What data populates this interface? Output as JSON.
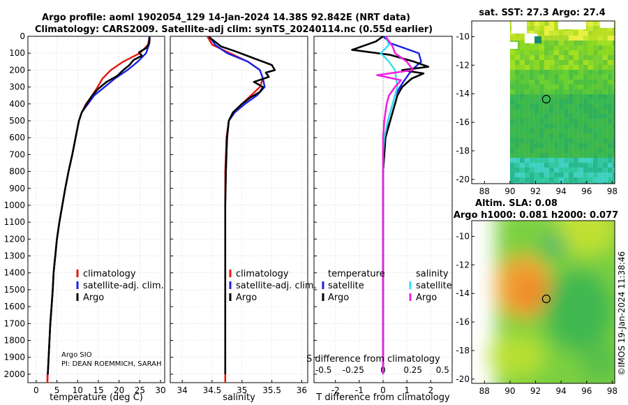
{
  "titles": {
    "line1": "Argo profile: aoml 1902054_129 14-Jan-2024 14.38S 92.842E (NRT data)",
    "line2": "Climatology: CARS2009. Satellite-adj clim: synTS_20240114.nc (0.55d earlier)"
  },
  "colors": {
    "climatology": "#e8180c",
    "satellite": "#1820e8",
    "argo": "#000000",
    "sat_salinity": "#30e0f0",
    "argo_salinity": "#f020e0"
  },
  "credit": {
    "line1": "Argo SIO",
    "line2": "PI: DEAN ROEMMICH, SARAH"
  },
  "side": {
    "sst_title": "sat. SST: 27.3 Argo: 27.4",
    "sla_title1": "Altim. SLA: 0.08",
    "sla_title2": "Argo h1000: 0.081 h2000: 0.077",
    "watermark": "©IMOS 19-Jan-2024 11:38:46"
  },
  "chart_data": [
    {
      "type": "line",
      "panel": "temperature",
      "xlabel": "temperature (deg C)",
      "ylabel": "",
      "xlim": [
        -2,
        31
      ],
      "ylim": [
        2050,
        0
      ],
      "xticks": [
        0,
        5,
        10,
        15,
        20,
        25,
        30
      ],
      "yticks": [
        0,
        100,
        200,
        300,
        400,
        500,
        600,
        700,
        800,
        900,
        1000,
        1100,
        1200,
        1300,
        1400,
        1500,
        1600,
        1700,
        1800,
        1900,
        2000
      ],
      "legend": [
        "climatology",
        "satellite-adj. clim.",
        "Argo"
      ],
      "series": [
        {
          "name": "climatology",
          "color": "#e8180c",
          "points": [
            [
              27.3,
              0
            ],
            [
              27.0,
              50
            ],
            [
              25.0,
              100
            ],
            [
              21.0,
              150
            ],
            [
              18.0,
              200
            ],
            [
              16.0,
              250
            ],
            [
              14.8,
              300
            ],
            [
              13.5,
              350
            ],
            [
              12.0,
              400
            ],
            [
              11.0,
              450
            ],
            [
              10.3,
              500
            ],
            [
              9.5,
              600
            ],
            [
              8.7,
              700
            ],
            [
              7.8,
              800
            ],
            [
              7.0,
              900
            ],
            [
              6.3,
              1000
            ],
            [
              5.6,
              1100
            ],
            [
              5.0,
              1200
            ],
            [
              4.6,
              1300
            ],
            [
              4.2,
              1400
            ],
            [
              4.0,
              1500
            ],
            [
              3.7,
              1600
            ],
            [
              3.4,
              1700
            ],
            [
              3.2,
              1800
            ],
            [
              3.0,
              1900
            ],
            [
              2.8,
              2000
            ],
            [
              2.7,
              2050
            ]
          ]
        },
        {
          "name": "satellite-adj. clim.",
          "color": "#1820e8",
          "points": [
            [
              27.3,
              0
            ],
            [
              27.2,
              50
            ],
            [
              26.5,
              100
            ],
            [
              24.5,
              150
            ],
            [
              22.0,
              200
            ],
            [
              19.0,
              250
            ],
            [
              16.5,
              300
            ],
            [
              14.0,
              350
            ],
            [
              12.5,
              400
            ],
            [
              11.0,
              450
            ],
            [
              10.3,
              500
            ],
            [
              9.5,
              600
            ],
            [
              8.7,
              700
            ],
            [
              7.8,
              800
            ],
            [
              7.0,
              900
            ],
            [
              6.3,
              1000
            ],
            [
              5.6,
              1100
            ],
            [
              5.0,
              1200
            ],
            [
              4.6,
              1300
            ],
            [
              4.2,
              1400
            ],
            [
              4.0,
              1500
            ],
            [
              3.7,
              1600
            ],
            [
              3.4,
              1700
            ],
            [
              3.2,
              1800
            ],
            [
              3.0,
              1900
            ],
            [
              2.8,
              2000
            ]
          ]
        },
        {
          "name": "Argo",
          "color": "#000000",
          "points": [
            [
              27.4,
              5
            ],
            [
              27.3,
              40
            ],
            [
              26.5,
              70
            ],
            [
              24.8,
              95
            ],
            [
              25.5,
              115
            ],
            [
              23.5,
              140
            ],
            [
              22.5,
              170
            ],
            [
              21.0,
              200
            ],
            [
              19.5,
              235
            ],
            [
              17.0,
              270
            ],
            [
              15.0,
              310
            ],
            [
              13.5,
              350
            ],
            [
              12.2,
              400
            ],
            [
              11.0,
              450
            ],
            [
              10.3,
              500
            ],
            [
              9.5,
              600
            ],
            [
              8.7,
              700
            ],
            [
              7.8,
              800
            ],
            [
              7.0,
              900
            ],
            [
              6.3,
              1000
            ],
            [
              5.6,
              1100
            ],
            [
              5.0,
              1200
            ],
            [
              4.6,
              1300
            ],
            [
              4.2,
              1400
            ],
            [
              4.0,
              1500
            ],
            [
              3.7,
              1600
            ],
            [
              3.4,
              1700
            ],
            [
              3.2,
              1800
            ],
            [
              3.0,
              1900
            ],
            [
              2.8,
              2000
            ]
          ]
        }
      ]
    },
    {
      "type": "line",
      "panel": "salinity",
      "xlabel": "salinity",
      "xlim": [
        33.8,
        36.1
      ],
      "ylim": [
        2050,
        0
      ],
      "xticks": [
        34,
        34.5,
        35,
        35.5,
        36
      ],
      "legend": [
        "climatology",
        "satellite-adj. clim.",
        "Argo"
      ],
      "series": [
        {
          "name": "climatology",
          "color": "#e8180c",
          "points": [
            [
              34.42,
              0
            ],
            [
              34.5,
              50
            ],
            [
              34.8,
              100
            ],
            [
              35.1,
              150
            ],
            [
              35.3,
              200
            ],
            [
              35.35,
              250
            ],
            [
              35.3,
              300
            ],
            [
              35.15,
              350
            ],
            [
              35.0,
              400
            ],
            [
              34.85,
              450
            ],
            [
              34.78,
              500
            ],
            [
              34.74,
              600
            ],
            [
              34.73,
              700
            ],
            [
              34.72,
              800
            ],
            [
              34.72,
              900
            ],
            [
              34.72,
              1000
            ],
            [
              34.72,
              1200
            ],
            [
              34.72,
              1400
            ],
            [
              34.72,
              1600
            ],
            [
              34.72,
              1800
            ],
            [
              34.72,
              2000
            ],
            [
              34.72,
              2050
            ]
          ]
        },
        {
          "name": "satellite-adj. clim.",
          "color": "#1820e8",
          "points": [
            [
              34.45,
              0
            ],
            [
              34.55,
              50
            ],
            [
              34.75,
              100
            ],
            [
              35.1,
              150
            ],
            [
              35.3,
              200
            ],
            [
              35.35,
              250
            ],
            [
              35.38,
              300
            ],
            [
              35.25,
              350
            ],
            [
              35.05,
              400
            ],
            [
              34.88,
              450
            ],
            [
              34.78,
              500
            ],
            [
              34.75,
              600
            ],
            [
              34.74,
              700
            ],
            [
              34.73,
              800
            ],
            [
              34.72,
              1000
            ],
            [
              34.72,
              1400
            ],
            [
              34.72,
              1800
            ],
            [
              34.72,
              2000
            ]
          ]
        },
        {
          "name": "Argo",
          "color": "#000000",
          "points": [
            [
              34.45,
              5
            ],
            [
              34.65,
              60
            ],
            [
              34.9,
              90
            ],
            [
              35.2,
              130
            ],
            [
              35.5,
              170
            ],
            [
              35.55,
              200
            ],
            [
              35.4,
              215
            ],
            [
              35.45,
              240
            ],
            [
              35.2,
              270
            ],
            [
              35.35,
              300
            ],
            [
              35.3,
              330
            ],
            [
              35.15,
              360
            ],
            [
              35.0,
              400
            ],
            [
              34.85,
              450
            ],
            [
              34.78,
              500
            ],
            [
              34.75,
              600
            ],
            [
              34.74,
              700
            ],
            [
              34.73,
              800
            ],
            [
              34.72,
              1000
            ],
            [
              34.72,
              1400
            ],
            [
              34.72,
              1800
            ],
            [
              34.72,
              2000
            ]
          ]
        }
      ]
    },
    {
      "type": "line",
      "panel": "difference",
      "xlabel": "T difference from climatology",
      "xlabel_top": "S difference from climatology",
      "xlim": [
        -2.9,
        2.9
      ],
      "ylim": [
        2050,
        0
      ],
      "xticks": [
        -2,
        -1,
        0,
        1,
        2
      ],
      "xticks_top": [
        -0.5,
        -0.25,
        0,
        0.25,
        0.5
      ],
      "legend_titles": [
        "temperature",
        "salinity"
      ],
      "legend": [
        "satellite",
        "Argo",
        "satellite",
        "Argo"
      ],
      "series": [
        {
          "name": "temperature satellite",
          "color": "#1820e8",
          "axis": "T",
          "points": [
            [
              0,
              0
            ],
            [
              0.3,
              40
            ],
            [
              1.5,
              100
            ],
            [
              1.6,
              150
            ],
            [
              1.2,
              200
            ],
            [
              0.8,
              280
            ],
            [
              0.5,
              350
            ],
            [
              0.4,
              400
            ],
            [
              0.2,
              500
            ],
            [
              0.1,
              600
            ],
            [
              0.05,
              700
            ],
            [
              0,
              800
            ],
            [
              0,
              2000
            ]
          ]
        },
        {
          "name": "temperature Argo",
          "color": "#000000",
          "axis": "T",
          "points": [
            [
              0,
              0
            ],
            [
              -0.3,
              30
            ],
            [
              -1.3,
              80
            ],
            [
              0.3,
              110
            ],
            [
              1.3,
              150
            ],
            [
              1.9,
              180
            ],
            [
              0.8,
              200
            ],
            [
              1.7,
              220
            ],
            [
              1.2,
              250
            ],
            [
              0.8,
              300
            ],
            [
              0.6,
              350
            ],
            [
              0.5,
              400
            ],
            [
              0.3,
              500
            ],
            [
              0.1,
              600
            ],
            [
              0.05,
              700
            ],
            [
              0,
              800
            ],
            [
              0,
              2000
            ]
          ]
        },
        {
          "name": "salinity satellite",
          "color": "#30e0f0",
          "axis": "S",
          "points": [
            [
              0.02,
              0
            ],
            [
              0.05,
              50
            ],
            [
              -0.02,
              100
            ],
            [
              0.05,
              150
            ],
            [
              0.1,
              200
            ],
            [
              0.12,
              300
            ],
            [
              0.08,
              400
            ],
            [
              0.04,
              500
            ],
            [
              0.01,
              600
            ],
            [
              0,
              700
            ],
            [
              0,
              2000
            ]
          ]
        },
        {
          "name": "salinity Argo",
          "color": "#f020e0",
          "axis": "S",
          "points": [
            [
              0.02,
              0
            ],
            [
              0.08,
              60
            ],
            [
              0.1,
              100
            ],
            [
              0.2,
              150
            ],
            [
              0.25,
              200
            ],
            [
              -0.05,
              230
            ],
            [
              0.15,
              260
            ],
            [
              0.1,
              300
            ],
            [
              0.05,
              350
            ],
            [
              0.03,
              400
            ],
            [
              0.01,
              500
            ],
            [
              0,
              600
            ],
            [
              0,
              2000
            ]
          ]
        }
      ]
    }
  ],
  "maps": {
    "sst": {
      "xticks": [
        88,
        90,
        92,
        94,
        96,
        98
      ],
      "yticks": [
        -10,
        -12,
        -14,
        -16,
        -18,
        -20
      ],
      "xlim": [
        87,
        98.2
      ],
      "ylim": [
        -20.3,
        -8.9
      ],
      "marker": [
        92.84,
        -14.38
      ]
    },
    "sla": {
      "xticks": [
        88,
        90,
        92,
        94,
        96,
        98
      ],
      "yticks": [
        -10,
        -12,
        -14,
        -16,
        -18,
        -20
      ],
      "xlim": [
        87,
        98.2
      ],
      "ylim": [
        -20.3,
        -8.9
      ],
      "marker": [
        92.84,
        -14.38
      ]
    }
  }
}
